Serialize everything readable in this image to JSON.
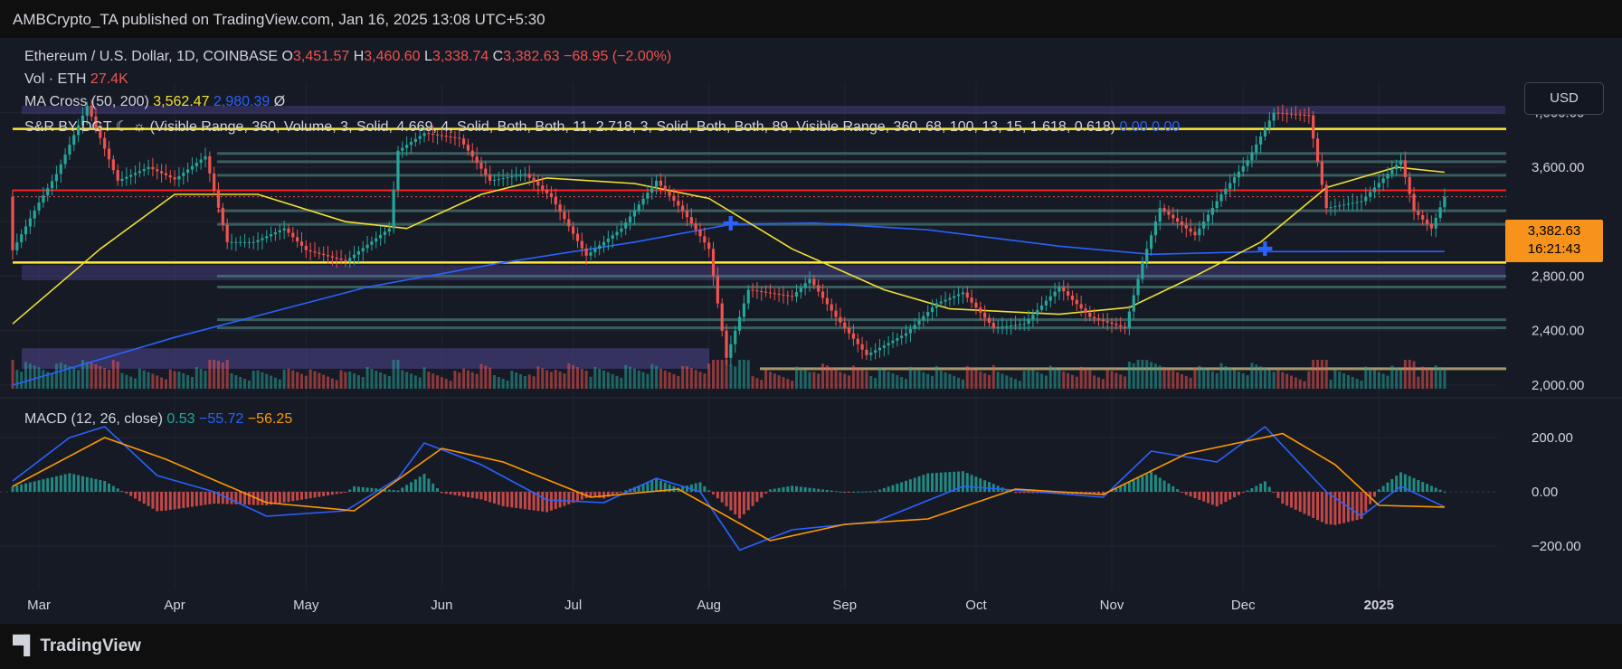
{
  "publisher_line": "AMBCrypto_TA published on TradingView.com, Jan 16, 2025 13:08 UTC+5:30",
  "footer_logo_text": "TradingView",
  "currency_button": "USD",
  "symbol": {
    "name": "Ethereum / U.S. Dollar, 1D, COINBASE",
    "o_label": "O",
    "o_value": "3,451.57",
    "h_label": "H",
    "h_value": "3,460.60",
    "l_label": "L",
    "l_value": "3,338.74",
    "c_label": "C",
    "c_value": "3,382.63",
    "change": "−68.95 (−2.00%)"
  },
  "volume_legend": {
    "label": "Vol · ETH",
    "value": "27.4K"
  },
  "ma_legend": {
    "label": "MA Cross (50, 200)",
    "ma50": "3,562.47",
    "ma200": "2,980.39",
    "extra": "Ø"
  },
  "sr_legend": {
    "label": "S&R BY DGT ☾ ☼ (Visible Range, 360, Volume, 3, Solid, 4.669, 4, Solid, Both, Both, 11, 2.718, 3, Solid, Both, Both, 89, Visible Range, 360, 68, 100, 13, 15, 1.618, 0.618)",
    "v1": "0.00",
    "v2": "0.00"
  },
  "macd_legend": {
    "label": "MACD (12, 26, close)",
    "hist": "0.53",
    "macd": "−55.72",
    "signal": "−56.25"
  },
  "price_tag": {
    "price": "3,382.63",
    "countdown": "16:21:43"
  },
  "colors": {
    "up": "#26a69a",
    "down": "#ef5350",
    "ma50": "#f0e130",
    "ma200": "#2962ff",
    "signal": "#ff9800",
    "resistance": "#ff1e1e",
    "support": "#ffeb3b",
    "zone": "#5b4fa8",
    "bg": "#161a25",
    "price_tag": "#f7931a"
  },
  "chart_data": {
    "type": "line",
    "price_axis": {
      "ticks": [
        2000,
        2400,
        2800,
        3200,
        3600,
        4000
      ],
      "tick_labels": [
        "2,000.00",
        "2,400.00",
        "2,800.00",
        "",
        "3,600.00",
        "4,000.00"
      ],
      "range": [
        1960,
        4150
      ]
    },
    "macd_axis": {
      "ticks": [
        -200,
        0,
        200
      ],
      "tick_labels": [
        "−200.00",
        "0.00",
        "200.00"
      ],
      "range": [
        -260,
        300
      ]
    },
    "x_axis": {
      "range": [
        "2024-02-24",
        "2025-01-28"
      ],
      "ticks": [
        {
          "date": "2024-03-01",
          "label": "Mar"
        },
        {
          "date": "2024-04-01",
          "label": "Apr"
        },
        {
          "date": "2024-05-01",
          "label": "May"
        },
        {
          "date": "2024-06-01",
          "label": "Jun"
        },
        {
          "date": "2024-07-01",
          "label": "Jul"
        },
        {
          "date": "2024-08-01",
          "label": "Aug"
        },
        {
          "date": "2024-09-01",
          "label": "Sep"
        },
        {
          "date": "2024-10-01",
          "label": "Oct"
        },
        {
          "date": "2024-11-01",
          "label": "Nov"
        },
        {
          "date": "2024-12-01",
          "label": "Dec"
        },
        {
          "date": "2025-01-01",
          "label": "2025"
        }
      ]
    },
    "close_series": [
      [
        "2024-02-24",
        2990
      ],
      [
        "2024-03-01",
        3340
      ],
      [
        "2024-03-05",
        3550
      ],
      [
        "2024-03-12",
        4050
      ],
      [
        "2024-03-19",
        3500
      ],
      [
        "2024-03-26",
        3600
      ],
      [
        "2024-04-01",
        3510
      ],
      [
        "2024-04-08",
        3680
      ],
      [
        "2024-04-13",
        3050
      ],
      [
        "2024-04-19",
        3050
      ],
      [
        "2024-04-26",
        3150
      ],
      [
        "2024-05-01",
        2990
      ],
      [
        "2024-05-10",
        2910
      ],
      [
        "2024-05-20",
        3150
      ],
      [
        "2024-05-22",
        3720
      ],
      [
        "2024-05-28",
        3850
      ],
      [
        "2024-06-05",
        3810
      ],
      [
        "2024-06-12",
        3500
      ],
      [
        "2024-06-20",
        3550
      ],
      [
        "2024-06-26",
        3380
      ],
      [
        "2024-07-04",
        2950
      ],
      [
        "2024-07-12",
        3150
      ],
      [
        "2024-07-20",
        3500
      ],
      [
        "2024-07-26",
        3280
      ],
      [
        "2024-08-01",
        3000
      ],
      [
        "2024-08-05",
        2200
      ],
      [
        "2024-08-10",
        2700
      ],
      [
        "2024-08-20",
        2650
      ],
      [
        "2024-08-24",
        2780
      ],
      [
        "2024-08-30",
        2500
      ],
      [
        "2024-09-06",
        2220
      ],
      [
        "2024-09-15",
        2380
      ],
      [
        "2024-09-22",
        2600
      ],
      [
        "2024-09-28",
        2680
      ],
      [
        "2024-10-05",
        2420
      ],
      [
        "2024-10-12",
        2450
      ],
      [
        "2024-10-20",
        2720
      ],
      [
        "2024-10-27",
        2500
      ],
      [
        "2024-11-04",
        2420
      ],
      [
        "2024-11-08",
        2900
      ],
      [
        "2024-11-12",
        3300
      ],
      [
        "2024-11-20",
        3100
      ],
      [
        "2024-11-26",
        3400
      ],
      [
        "2024-12-02",
        3650
      ],
      [
        "2024-12-08",
        4000
      ],
      [
        "2024-12-16",
        3980
      ],
      [
        "2024-12-20",
        3300
      ],
      [
        "2024-12-28",
        3350
      ],
      [
        "2025-01-06",
        3650
      ],
      [
        "2025-01-09",
        3280
      ],
      [
        "2025-01-13",
        3150
      ],
      [
        "2025-01-16",
        3382.63
      ]
    ],
    "ma50_series": [
      [
        "2024-02-24",
        2450
      ],
      [
        "2024-03-15",
        3000
      ],
      [
        "2024-04-01",
        3400
      ],
      [
        "2024-04-20",
        3400
      ],
      [
        "2024-05-10",
        3200
      ],
      [
        "2024-05-24",
        3150
      ],
      [
        "2024-06-10",
        3400
      ],
      [
        "2024-06-25",
        3520
      ],
      [
        "2024-07-15",
        3480
      ],
      [
        "2024-08-01",
        3370
      ],
      [
        "2024-08-20",
        3000
      ],
      [
        "2024-09-10",
        2700
      ],
      [
        "2024-09-25",
        2560
      ],
      [
        "2024-10-20",
        2520
      ],
      [
        "2024-11-05",
        2570
      ],
      [
        "2024-11-20",
        2800
      ],
      [
        "2024-12-05",
        3050
      ],
      [
        "2024-12-20",
        3450
      ],
      [
        "2025-01-05",
        3600
      ],
      [
        "2025-01-16",
        3562.47
      ]
    ],
    "ma200_series": [
      [
        "2024-02-24",
        2000
      ],
      [
        "2024-04-01",
        2350
      ],
      [
        "2024-05-15",
        2720
      ],
      [
        "2024-06-15",
        2900
      ],
      [
        "2024-07-15",
        3050
      ],
      [
        "2024-08-06",
        3180
      ],
      [
        "2024-08-25",
        3190
      ],
      [
        "2024-09-20",
        3140
      ],
      [
        "2024-10-20",
        3020
      ],
      [
        "2024-11-10",
        2960
      ],
      [
        "2024-12-05",
        2980
      ],
      [
        "2025-01-16",
        2980.39
      ]
    ],
    "resistance_level": 3430,
    "support_levels": [
      3880,
      2900
    ],
    "macd_series": [
      [
        "2024-02-24",
        40
      ],
      [
        "2024-03-08",
        200
      ],
      [
        "2024-03-16",
        240
      ],
      [
        "2024-03-28",
        60
      ],
      [
        "2024-04-10",
        0
      ],
      [
        "2024-04-22",
        -90
      ],
      [
        "2024-05-10",
        -70
      ],
      [
        "2024-05-22",
        50
      ],
      [
        "2024-05-28",
        180
      ],
      [
        "2024-06-10",
        100
      ],
      [
        "2024-06-25",
        -30
      ],
      [
        "2024-07-08",
        -40
      ],
      [
        "2024-07-20",
        50
      ],
      [
        "2024-07-30",
        0
      ],
      [
        "2024-08-08",
        -215
      ],
      [
        "2024-08-20",
        -140
      ],
      [
        "2024-09-08",
        -110
      ],
      [
        "2024-09-28",
        20
      ],
      [
        "2024-10-15",
        0
      ],
      [
        "2024-10-30",
        -20
      ],
      [
        "2024-11-10",
        150
      ],
      [
        "2024-11-25",
        110
      ],
      [
        "2024-12-06",
        240
      ],
      [
        "2024-12-20",
        0
      ],
      [
        "2024-12-28",
        -90
      ],
      [
        "2025-01-06",
        20
      ],
      [
        "2025-01-16",
        -55.72
      ]
    ],
    "signal_series": [
      [
        "2024-02-24",
        20
      ],
      [
        "2024-03-16",
        200
      ],
      [
        "2024-03-30",
        120
      ],
      [
        "2024-04-22",
        -40
      ],
      [
        "2024-05-12",
        -70
      ],
      [
        "2024-06-01",
        160
      ],
      [
        "2024-06-15",
        110
      ],
      [
        "2024-07-05",
        -20
      ],
      [
        "2024-07-25",
        10
      ],
      [
        "2024-08-15",
        -180
      ],
      [
        "2024-09-01",
        -120
      ],
      [
        "2024-09-20",
        -100
      ],
      [
        "2024-10-10",
        10
      ],
      [
        "2024-10-30",
        -10
      ],
      [
        "2024-11-18",
        140
      ],
      [
        "2024-12-10",
        215
      ],
      [
        "2024-12-22",
        100
      ],
      [
        "2025-01-01",
        -50
      ],
      [
        "2025-01-16",
        -56.25
      ]
    ]
  }
}
